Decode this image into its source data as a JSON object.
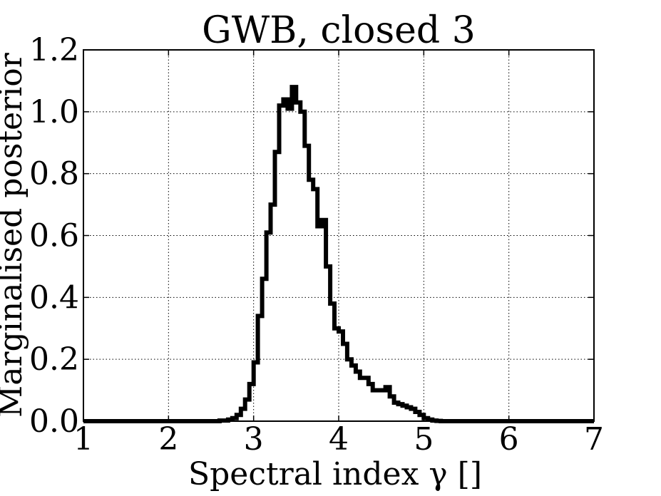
{
  "chart_data": {
    "type": "line",
    "style": "step-histogram",
    "title": "GWB, closed 3",
    "xlabel": "Spectral index γ []",
    "ylabel": "Marginalised posterior",
    "xlim": [
      1,
      7
    ],
    "ylim": [
      0,
      1.2
    ],
    "xticks": [
      1,
      2,
      3,
      4,
      5,
      6,
      7
    ],
    "xtick_labels": [
      "1",
      "2",
      "3",
      "4",
      "5",
      "6",
      "7"
    ],
    "yticks": [
      0.0,
      0.2,
      0.4,
      0.6,
      0.8,
      1.0,
      1.2
    ],
    "ytick_labels": [
      "0.0",
      "0.2",
      "0.4",
      "0.6",
      "0.8",
      "1.0",
      "1.2"
    ],
    "grid": true,
    "line_color": "#000000",
    "x": [
      1.0,
      2.5,
      2.6,
      2.7,
      2.75,
      2.8,
      2.85,
      2.9,
      2.95,
      3.0,
      3.05,
      3.1,
      3.15,
      3.2,
      3.25,
      3.3,
      3.35,
      3.4,
      3.45,
      3.5,
      3.55,
      3.6,
      3.65,
      3.7,
      3.75,
      3.8,
      3.85,
      3.9,
      3.95,
      4.0,
      4.05,
      4.1,
      4.15,
      4.2,
      4.25,
      4.3,
      4.35,
      4.4,
      4.45,
      4.5,
      4.55,
      4.6,
      4.65,
      4.7,
      4.75,
      4.8,
      4.85,
      4.9,
      4.95,
      5.0,
      5.05,
      5.1,
      5.15,
      5.2,
      5.25,
      5.3,
      5.4,
      5.5,
      7.0
    ],
    "y": [
      0.0,
      0.0,
      0.002,
      0.005,
      0.01,
      0.02,
      0.04,
      0.07,
      0.12,
      0.19,
      0.34,
      0.46,
      0.61,
      0.7,
      0.87,
      1.02,
      1.04,
      1.01,
      1.08,
      1.03,
      1.0,
      0.89,
      0.78,
      0.75,
      0.63,
      0.65,
      0.5,
      0.38,
      0.3,
      0.29,
      0.25,
      0.2,
      0.18,
      0.16,
      0.14,
      0.14,
      0.12,
      0.1,
      0.1,
      0.1,
      0.11,
      0.08,
      0.06,
      0.055,
      0.05,
      0.045,
      0.04,
      0.03,
      0.02,
      0.01,
      0.005,
      0.002,
      0.001,
      0.0,
      0.0,
      0.0,
      0.0,
      0.0,
      0.0
    ]
  }
}
